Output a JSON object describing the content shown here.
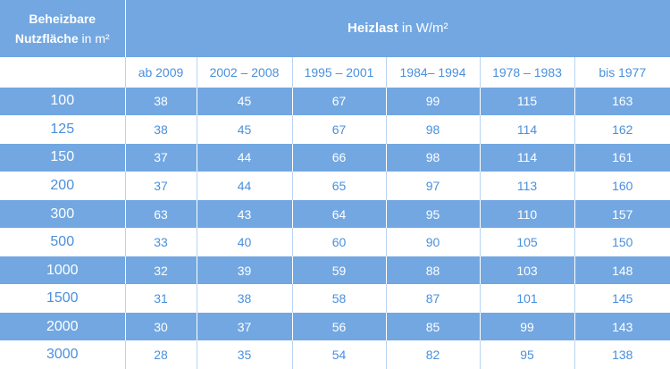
{
  "table": {
    "header": {
      "area": {
        "line1": "Beheizbare",
        "line2": "Nutzfläche",
        "unit": "in m²"
      },
      "load": {
        "label": "Heizlast",
        "unit": "in W/m²"
      }
    },
    "periods": [
      "ab 2009",
      "2002 – 2008",
      "1995 – 2001",
      "1984– 1994",
      "1978 – 1983",
      "bis 1977"
    ],
    "rows": [
      [
        100,
        38,
        45,
        67,
        99,
        115,
        163
      ],
      [
        125,
        38,
        45,
        67,
        98,
        114,
        162
      ],
      [
        150,
        37,
        44,
        66,
        98,
        114,
        161
      ],
      [
        200,
        37,
        44,
        65,
        97,
        113,
        160
      ],
      [
        300,
        63,
        43,
        64,
        95,
        110,
        157
      ],
      [
        500,
        33,
        40,
        60,
        90,
        105,
        150
      ],
      [
        1000,
        32,
        39,
        59,
        88,
        103,
        148
      ],
      [
        1500,
        31,
        38,
        58,
        87,
        101,
        145
      ],
      [
        2000,
        30,
        37,
        56,
        85,
        99,
        143
      ],
      [
        3000,
        28,
        35,
        54,
        82,
        95,
        138
      ]
    ]
  }
}
